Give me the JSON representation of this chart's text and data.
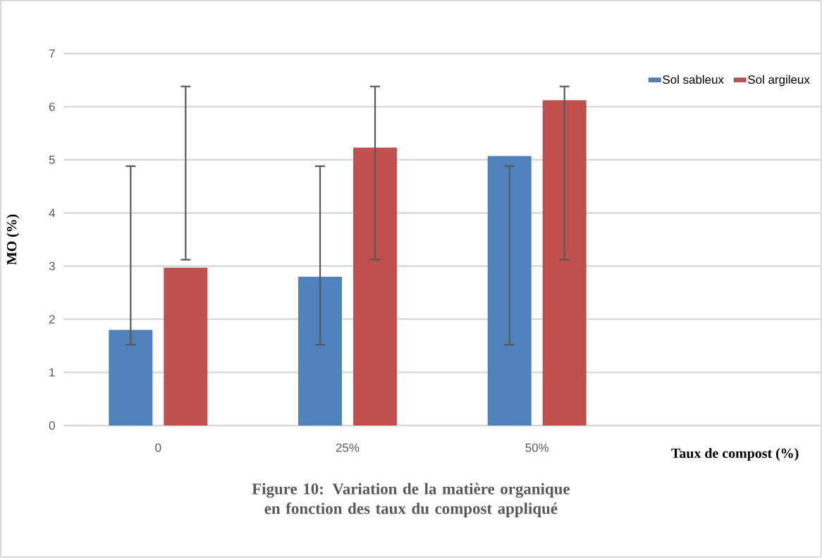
{
  "chart_data": {
    "type": "bar",
    "categories": [
      "0",
      "25%",
      "50%",
      null
    ],
    "series": [
      {
        "name": "Sol sableux",
        "color": "#4f81bd",
        "values": [
          1.8,
          2.8,
          5.07,
          null
        ],
        "errors": [
          [
            1.52,
            4.88
          ],
          [
            1.52,
            4.88
          ],
          [
            1.52,
            4.88
          ],
          null
        ]
      },
      {
        "name": "Sol argileux",
        "color": "#c0504d",
        "values": [
          2.97,
          5.23,
          6.12,
          null
        ],
        "errors": [
          [
            3.12,
            6.38
          ],
          [
            3.12,
            6.38
          ],
          [
            3.12,
            6.38
          ],
          null
        ]
      }
    ],
    "ylim": [
      0,
      7
    ],
    "yticks": [
      0,
      1,
      2,
      3,
      4,
      5,
      6,
      7
    ],
    "ylabel": "MO (%)",
    "xlabel": "Taux de compost (%)",
    "annotations": [
      "Figure 10: Variation de la matière organique en fonction des taux du compost appliqué"
    ],
    "grid": "y",
    "legend": "top right"
  }
}
